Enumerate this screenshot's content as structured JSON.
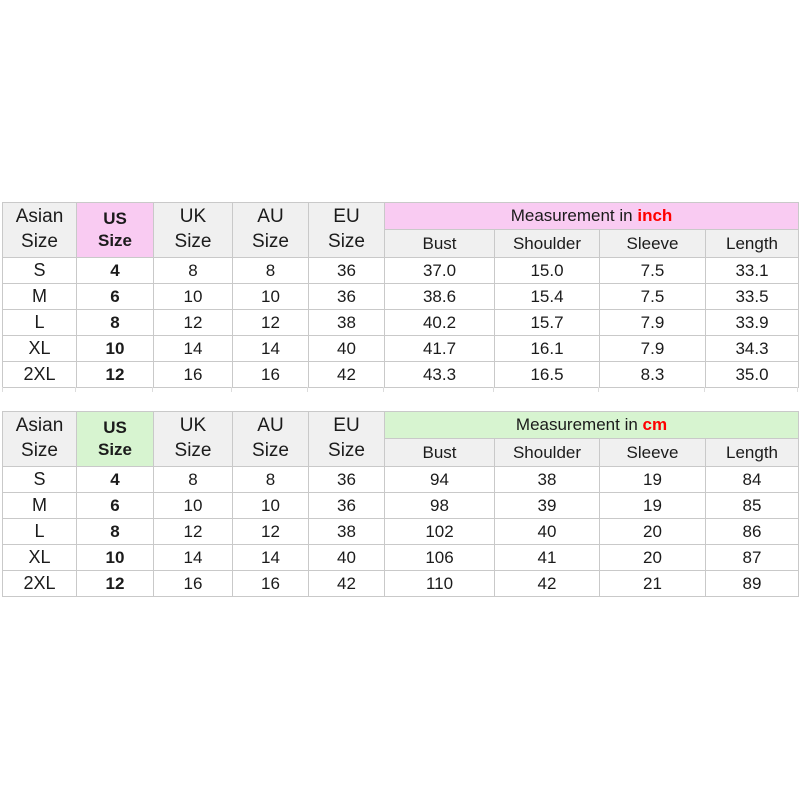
{
  "colors": {
    "inch_accent": "#f9cbf2",
    "cm_accent": "#d7f4d0",
    "header_gray": "#f0f0f0",
    "border": "#c9c9c9",
    "unit_red": "#ff0000",
    "text": "#1b1b1b"
  },
  "chart_data": [
    {
      "type": "table",
      "name": "size-table-inch",
      "title": "Measurement in inch",
      "title_prefix": "Measurement in ",
      "unit": "inch",
      "accent_color": "#f9cbf2",
      "unit_color": "#ff0000",
      "columns": [
        "Asian Size",
        "US Size",
        "UK Size",
        "AU Size",
        "EU Size",
        "Bust",
        "Shoulder",
        "Sleeve",
        "Length"
      ],
      "highlight_column": "US Size",
      "rows": [
        [
          "S",
          "4",
          "8",
          "8",
          "36",
          "37.0",
          "15.0",
          "7.5",
          "33.1"
        ],
        [
          "M",
          "6",
          "10",
          "10",
          "36",
          "38.6",
          "15.4",
          "7.5",
          "33.5"
        ],
        [
          "L",
          "8",
          "12",
          "12",
          "38",
          "40.2",
          "15.7",
          "7.9",
          "33.9"
        ],
        [
          "XL",
          "10",
          "14",
          "14",
          "40",
          "41.7",
          "16.1",
          "7.9",
          "34.3"
        ],
        [
          "2XL",
          "12",
          "16",
          "16",
          "42",
          "43.3",
          "16.5",
          "8.3",
          "35.0"
        ]
      ]
    },
    {
      "type": "table",
      "name": "size-table-cm",
      "title": "Measurement in cm",
      "title_prefix": "Measurement in ",
      "unit": "cm",
      "accent_color": "#d7f4d0",
      "unit_color": "#ff0000",
      "columns": [
        "Asian Size",
        "US Size",
        "UK Size",
        "AU Size",
        "EU Size",
        "Bust",
        "Shoulder",
        "Sleeve",
        "Length"
      ],
      "highlight_column": "US Size",
      "rows": [
        [
          "S",
          "4",
          "8",
          "8",
          "36",
          "94",
          "38",
          "19",
          "84"
        ],
        [
          "M",
          "6",
          "10",
          "10",
          "36",
          "98",
          "39",
          "19",
          "85"
        ],
        [
          "L",
          "8",
          "12",
          "12",
          "38",
          "102",
          "40",
          "20",
          "86"
        ],
        [
          "XL",
          "10",
          "14",
          "14",
          "40",
          "106",
          "41",
          "20",
          "87"
        ],
        [
          "2XL",
          "12",
          "16",
          "16",
          "42",
          "110",
          "42",
          "21",
          "89"
        ]
      ]
    }
  ]
}
